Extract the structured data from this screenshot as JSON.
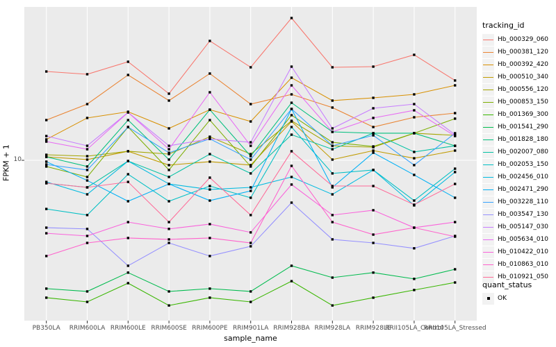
{
  "chart": {
    "y_axis_title": "FPKM + 1",
    "x_axis_title": "sample_name",
    "y_tick_label": "10",
    "legend_title": "tracking_id",
    "quant_legend_title": "quant_status",
    "quant_legend_value": "OK"
  },
  "colors": {
    "panel_bg": "#EBEBEB",
    "grid": "#FFFFFF",
    "tick": "#333333",
    "point": "#000000",
    "tick_text": "#4D4D4D"
  },
  "chart_data": {
    "type": "line",
    "title": "",
    "xlabel": "sample_name",
    "ylabel": "FPKM + 1",
    "y_scale": "log10",
    "y_breaks": [
      10
    ],
    "grid": true,
    "legend_position": "right",
    "point_shape": "filled-square",
    "categories": [
      "PB350LA",
      "RRIM600LA",
      "RRIM600LE",
      "RRIM600SE",
      "RRIM600PE",
      "RRIM901LA",
      "RRIM928BA",
      "RRIM928LA",
      "RRIM928LE",
      "RRII105LA_Control",
      "RRII105LA_Stressed"
    ],
    "quant_status": "OK",
    "series": [
      {
        "name": "Hb_000329_060",
        "color": "#F8766D",
        "values": [
          20.89,
          20.42,
          22.65,
          17.38,
          26.92,
          21.63,
          32.55,
          21.63,
          21.75,
          23.99,
          19.39
        ]
      },
      {
        "name": "Hb_000381_120",
        "color": "#EA8331",
        "values": [
          13.96,
          15.94,
          20.3,
          16.41,
          20.54,
          15.94,
          17.28,
          15.49,
          13.18,
          14.29,
          14.79
        ]
      },
      {
        "name": "Hb_000392_420",
        "color": "#D89000",
        "values": [
          11.89,
          14.21,
          14.96,
          13.03,
          15.22,
          13.8,
          19.84,
          16.41,
          16.79,
          17.28,
          18.62
        ]
      },
      {
        "name": "Hb_000510_340",
        "color": "#C09B00",
        "values": [
          10.29,
          10.06,
          10.78,
          9.61,
          9.89,
          9.61,
          13.8,
          10.06,
          10.84,
          10.17,
          10.84
        ]
      },
      {
        "name": "Hb_000556_120",
        "color": "#A3A500",
        "values": [
          10.47,
          10.35,
          10.78,
          10.53,
          12.16,
          10.53,
          13.88,
          11.28,
          11.15,
          12.52,
          12.3
        ]
      },
      {
        "name": "Hb_000853_150",
        "color": "#7CAE00",
        "values": [
          9.5,
          8.71,
          13.18,
          9.23,
          13.96,
          9.5,
          14.54,
          11.61,
          11.22,
          12.52,
          14.13
        ]
      },
      {
        "name": "Hb_001369_300",
        "color": "#39B600",
        "values": [
          3.2,
          3.09,
          3.61,
          3.0,
          3.2,
          3.09,
          3.67,
          3.0,
          3.2,
          3.41,
          3.63
        ]
      },
      {
        "name": "Hb_001541_290",
        "color": "#00BB4E",
        "values": [
          3.45,
          3.37,
          3.94,
          3.37,
          3.45,
          3.37,
          4.17,
          3.78,
          3.94,
          3.74,
          4.05
        ]
      },
      {
        "name": "Hb_001828_180",
        "color": "#00BF7D",
        "values": [
          10.29,
          9.5,
          13.96,
          10.06,
          15.22,
          10.35,
          16.12,
          12.66,
          12.52,
          12.52,
          11.28
        ]
      },
      {
        "name": "Hb_002007_080",
        "color": "#00C1A3",
        "values": [
          8.27,
          7.99,
          9.94,
          8.71,
          10.53,
          8.97,
          12.37,
          10.96,
          12.52,
          10.72,
          11.28
        ]
      },
      {
        "name": "Hb_002053_150",
        "color": "#00BFC4",
        "values": [
          6.68,
          6.35,
          8.91,
          7.12,
          8.08,
          7.33,
          13.18,
          8.97,
          9.23,
          7.16,
          9.33
        ]
      },
      {
        "name": "Hb_002456_010",
        "color": "#00BAE0",
        "values": [
          8.36,
          7.54,
          9.94,
          8.22,
          7.85,
          7.99,
          8.71,
          7.54,
          9.23,
          6.88,
          9.07
        ]
      },
      {
        "name": "Hb_002471_290",
        "color": "#00B0F6",
        "values": [
          9.89,
          8.46,
          7.12,
          8.22,
          7.16,
          7.76,
          15.31,
          7.99,
          10.65,
          8.86,
          7.33
        ]
      },
      {
        "name": "Hb_003228_110",
        "color": "#35A2FF",
        "values": [
          9.66,
          9.23,
          13.18,
          10.65,
          11.95,
          10.06,
          15.31,
          11.28,
          12.3,
          9.61,
          12.52
        ]
      },
      {
        "name": "Hb_003547_130",
        "color": "#9590FF",
        "values": [
          5.72,
          5.66,
          4.17,
          5.04,
          4.52,
          4.9,
          7.04,
          5.19,
          5.04,
          4.82,
          5.34
        ]
      },
      {
        "name": "Hb_005147_030",
        "color": "#C77CFF",
        "values": [
          12.23,
          11.28,
          14.88,
          11.28,
          11.95,
          11.61,
          21.75,
          13.03,
          15.4,
          15.94,
          12.37
        ]
      },
      {
        "name": "Hb_005634_010",
        "color": "#E76BF3",
        "values": [
          11.68,
          10.96,
          14.88,
          10.96,
          17.58,
          11.28,
          18.62,
          12.66,
          14.21,
          15.14,
          12.23
        ]
      },
      {
        "name": "Hb_010422_010",
        "color": "#FA62DB",
        "values": [
          5.46,
          5.34,
          5.99,
          5.66,
          5.89,
          5.5,
          8.18,
          6.35,
          6.61,
          5.72,
          5.99
        ]
      },
      {
        "name": "Hb_010863_010",
        "color": "#FF61CC",
        "values": [
          4.52,
          5.04,
          5.25,
          5.19,
          5.25,
          5.04,
          9.55,
          5.99,
          5.4,
          5.72,
          5.31
        ]
      },
      {
        "name": "Hb_010921_050",
        "color": "#FF6A98",
        "values": [
          8.27,
          7.99,
          8.36,
          5.99,
          8.66,
          6.35,
          10.78,
          8.08,
          8.08,
          6.92,
          8.22
        ]
      }
    ]
  }
}
